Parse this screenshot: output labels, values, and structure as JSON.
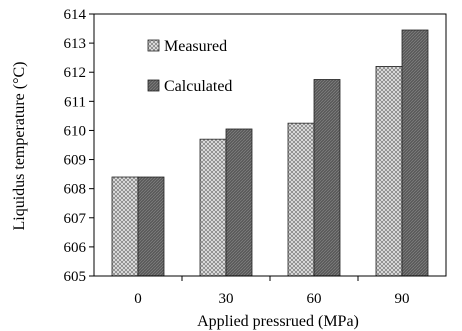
{
  "chart_data": {
    "type": "bar",
    "categories": [
      "0",
      "30",
      "60",
      "90"
    ],
    "series": [
      {
        "name": "Measured",
        "values": [
          608.4,
          609.7,
          610.25,
          612.2
        ],
        "pattern": "crosshatch",
        "color": "#bdbdbd"
      },
      {
        "name": "Calculated",
        "values": [
          608.4,
          610.05,
          611.75,
          613.45
        ],
        "pattern": "dark",
        "color": "#6e6e6e"
      }
    ],
    "xlabel": "Applied pressrued (MPa)",
    "ylabel": "Liquidus temperature (°C)",
    "ylim": [
      605,
      614
    ],
    "yticks": [
      605,
      606,
      607,
      608,
      609,
      610,
      611,
      612,
      613,
      614
    ],
    "legend_position": "top-left",
    "grid": false
  }
}
